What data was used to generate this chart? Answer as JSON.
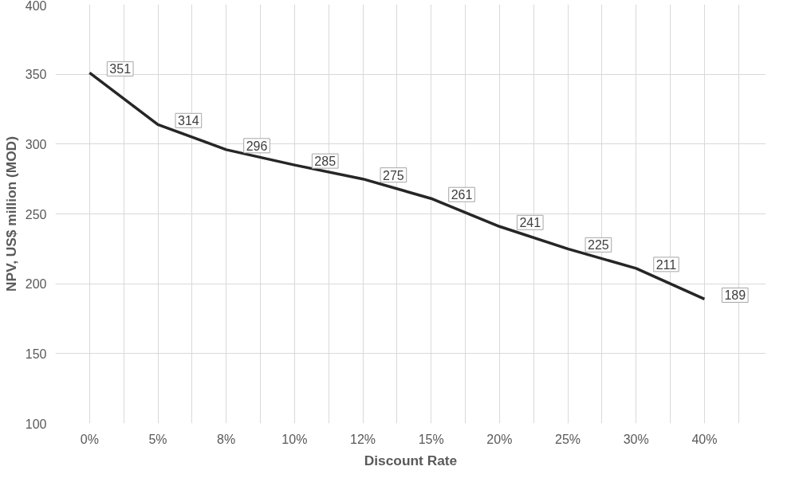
{
  "chart_data": {
    "type": "line",
    "xlabel": "Discount Rate",
    "ylabel": "NPV, US$ million (MOD)",
    "categories": [
      "0%",
      "5%",
      "8%",
      "10%",
      "12%",
      "15%",
      "20%",
      "25%",
      "30%",
      "40%"
    ],
    "series": [
      {
        "color": "#262626",
        "values": [
          351,
          314,
          296,
          285,
          275,
          261,
          241,
          225,
          211,
          189
        ]
      }
    ],
    "ylim": [
      100,
      400
    ],
    "yticks": [
      100,
      150,
      200,
      250,
      300,
      350,
      400
    ],
    "grid": true,
    "data_labels": true,
    "marker": "none",
    "line_style": "solid"
  }
}
